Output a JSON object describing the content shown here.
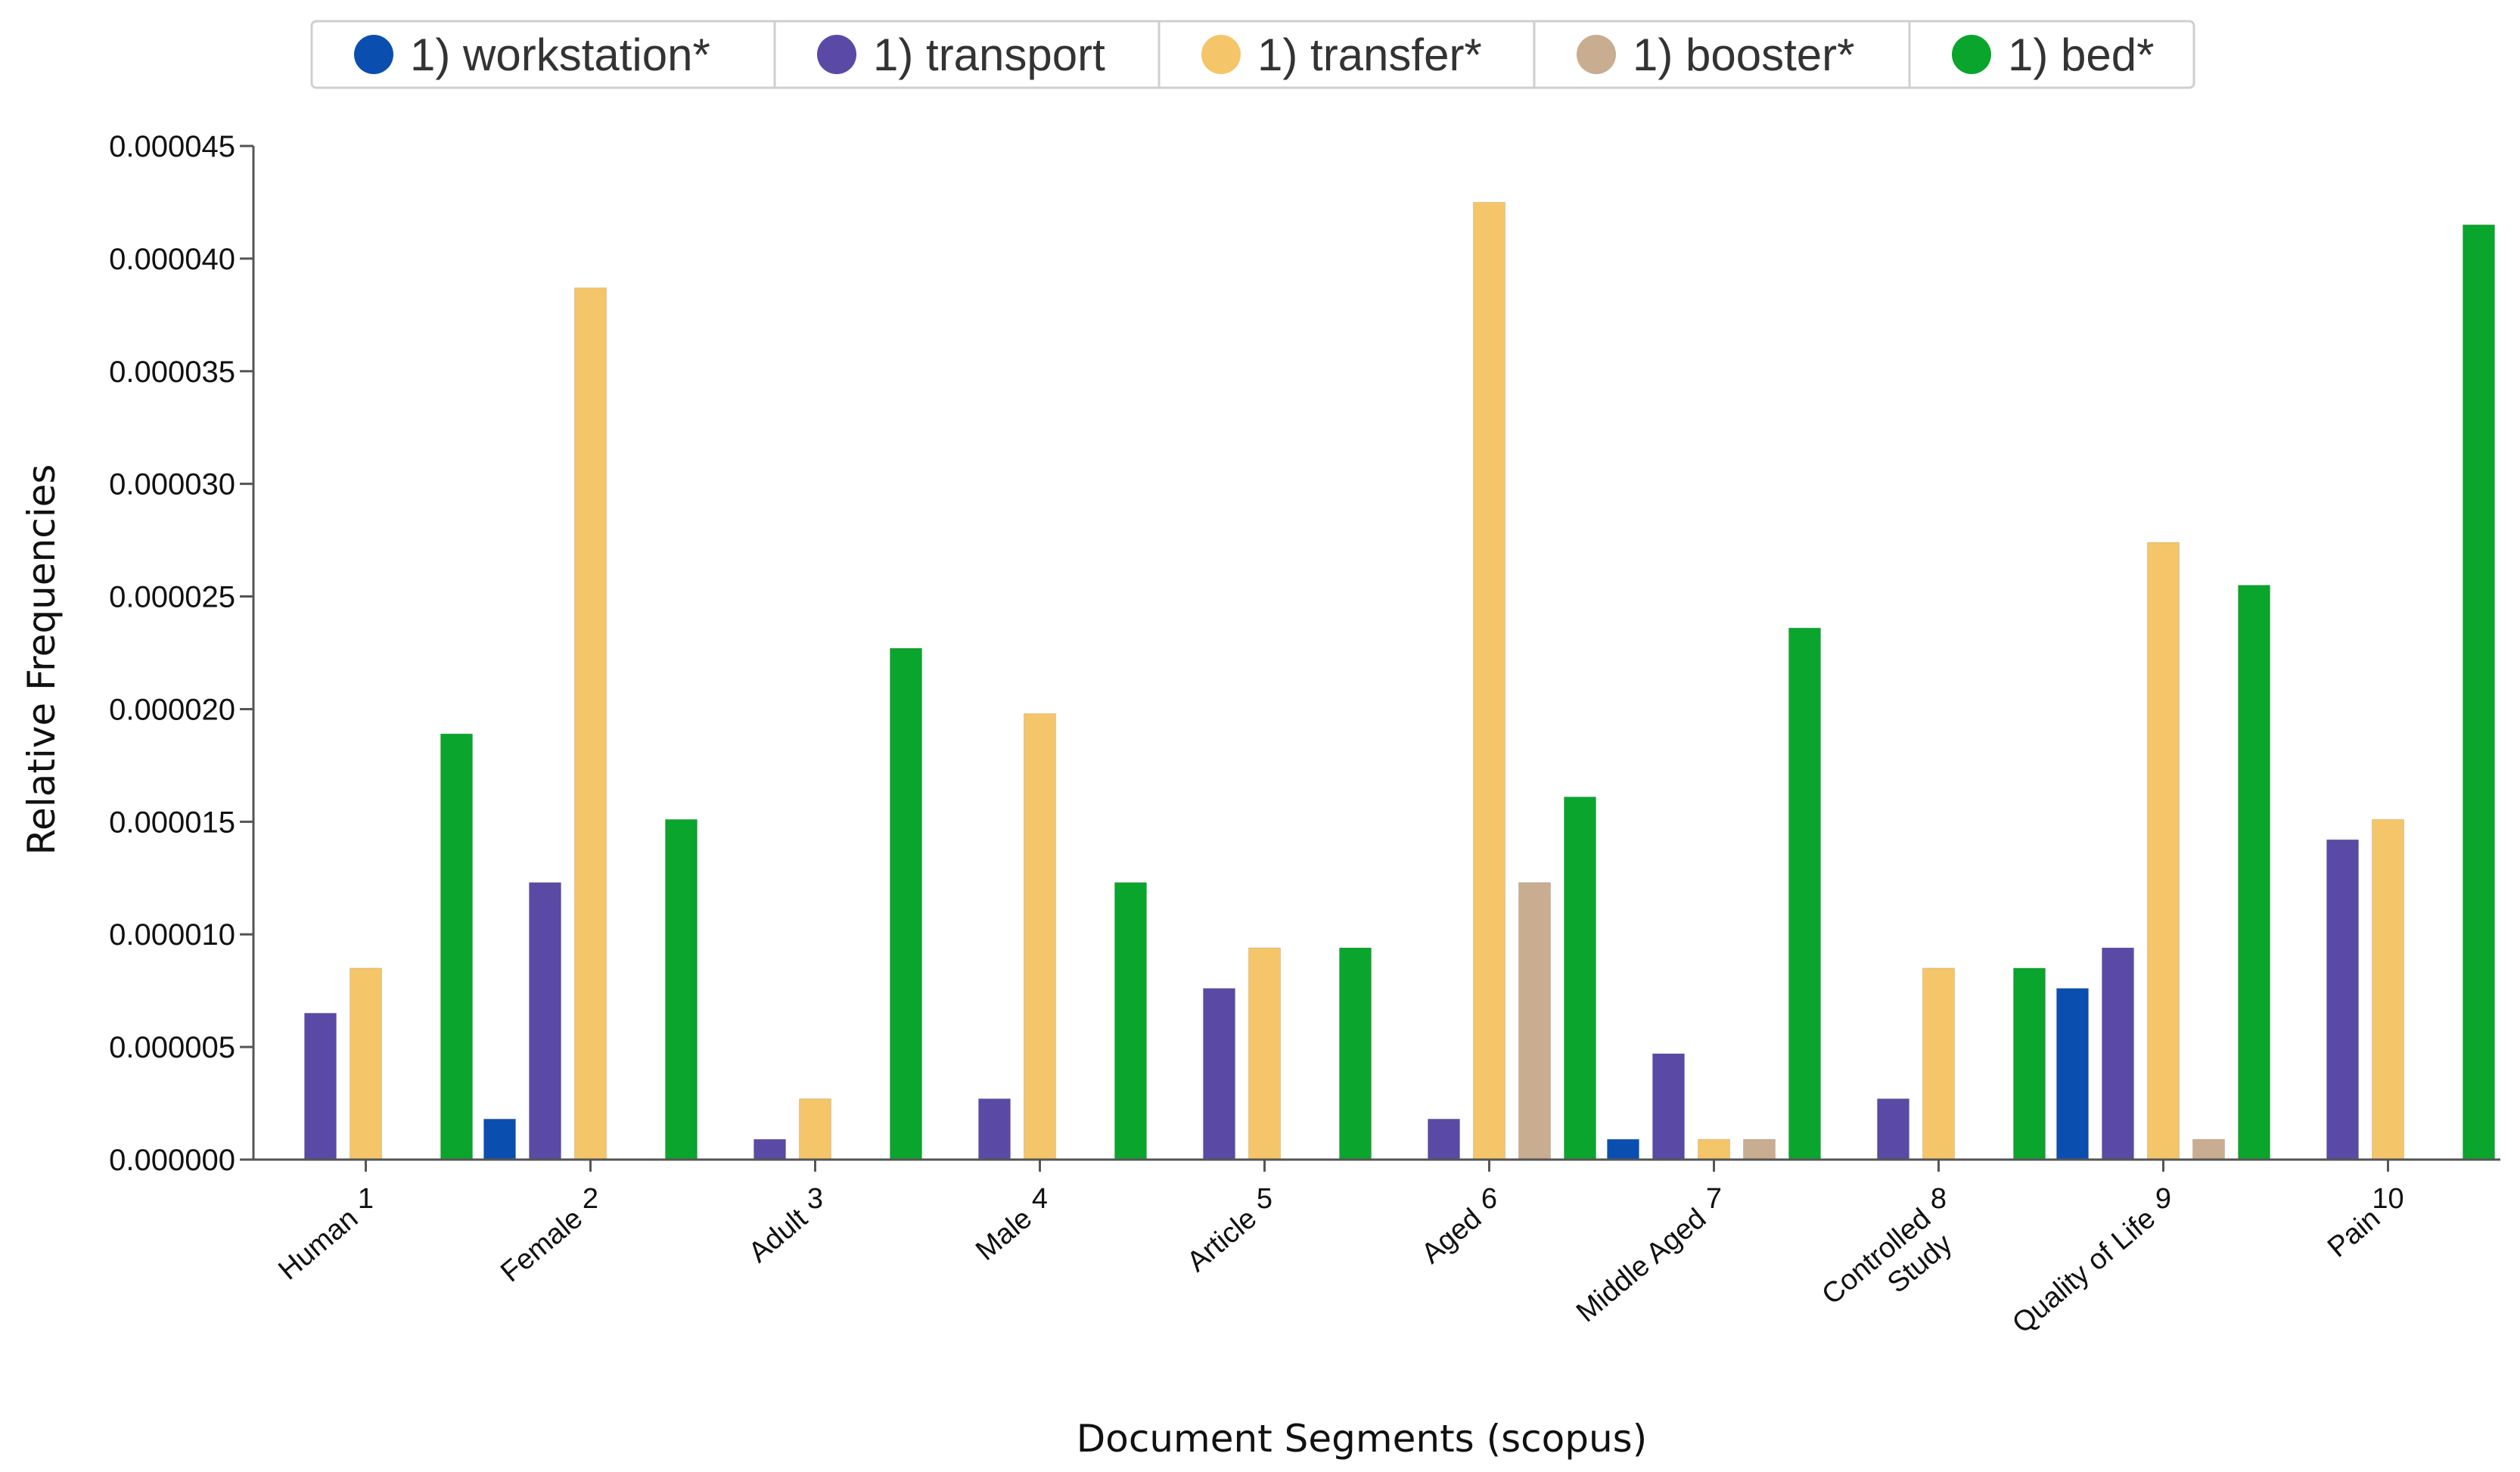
{
  "chart_data": {
    "type": "bar",
    "xlabel": "Document Segments (scopus)",
    "ylabel": "Relative Frequencies",
    "ylim": [
      0,
      4.5e-05
    ],
    "yticks": [
      "0.000000",
      "0.000005",
      "0.000010",
      "0.000015",
      "0.000020",
      "0.000025",
      "0.000030",
      "0.000035",
      "0.000040",
      "0.000045"
    ],
    "categories": [
      "1",
      "2",
      "3",
      "4",
      "5",
      "6",
      "7",
      "8",
      "9",
      "10"
    ],
    "category_labels": [
      [
        "Human"
      ],
      [
        "Female"
      ],
      [
        "Adult"
      ],
      [
        "Male"
      ],
      [
        "Article"
      ],
      [
        "Aged"
      ],
      [
        "Middle Aged"
      ],
      [
        "Controlled",
        "Study"
      ],
      [
        "Quality of Life"
      ],
      [
        "Pain"
      ]
    ],
    "legend_position": "top",
    "series": [
      {
        "name": "1) workstation*",
        "color": "#0a4fb0",
        "values": [
          0,
          1.8e-06,
          0,
          0,
          0,
          0,
          9e-07,
          0,
          7.6e-06,
          0
        ]
      },
      {
        "name": "1) transport",
        "color": "#5a4aa6",
        "values": [
          6.5e-06,
          1.23e-05,
          9e-07,
          2.7e-06,
          7.6e-06,
          1.8e-06,
          4.7e-06,
          2.7e-06,
          9.4e-06,
          1.42e-05
        ]
      },
      {
        "name": "1) transfer*",
        "color": "#f5c56a",
        "values": [
          8.5e-06,
          3.87e-05,
          2.7e-06,
          1.98e-05,
          9.4e-06,
          4.25e-05,
          9e-07,
          8.5e-06,
          2.74e-05,
          1.51e-05
        ]
      },
      {
        "name": "1) booster*",
        "color": "#c9ad90",
        "values": [
          0,
          0,
          0,
          0,
          0,
          1.23e-05,
          9e-07,
          0,
          9e-07,
          0
        ]
      },
      {
        "name": "1) bed*",
        "color": "#0aa52c",
        "values": [
          1.89e-05,
          1.51e-05,
          2.27e-05,
          1.23e-05,
          9.4e-06,
          1.61e-05,
          2.36e-05,
          8.5e-06,
          2.55e-05,
          4.15e-05
        ]
      }
    ]
  }
}
